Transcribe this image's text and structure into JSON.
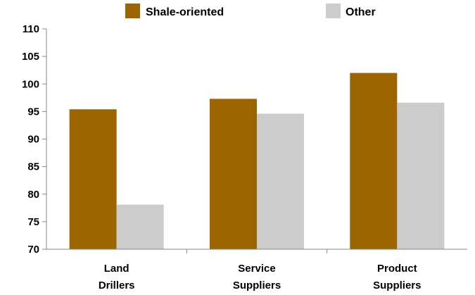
{
  "chart_data": {
    "type": "bar",
    "title": "",
    "xlabel": "",
    "ylabel": "",
    "categories": [
      [
        "Land",
        "Drillers"
      ],
      [
        "Service",
        "Suppliers"
      ],
      [
        "Product",
        "Suppliers"
      ]
    ],
    "series": [
      {
        "name": "Shale-oriented",
        "color": "#9c6500",
        "values": [
          95.4,
          97.3,
          102.0
        ]
      },
      {
        "name": "Other",
        "color": "#cccccc",
        "values": [
          78.1,
          94.6,
          96.6
        ]
      }
    ],
    "ylim": [
      70,
      110
    ],
    "yticks": [
      "70",
      "75",
      "80",
      "85",
      "90",
      "95",
      "100",
      "105",
      "110"
    ],
    "grid": false,
    "legend_position": "top"
  }
}
